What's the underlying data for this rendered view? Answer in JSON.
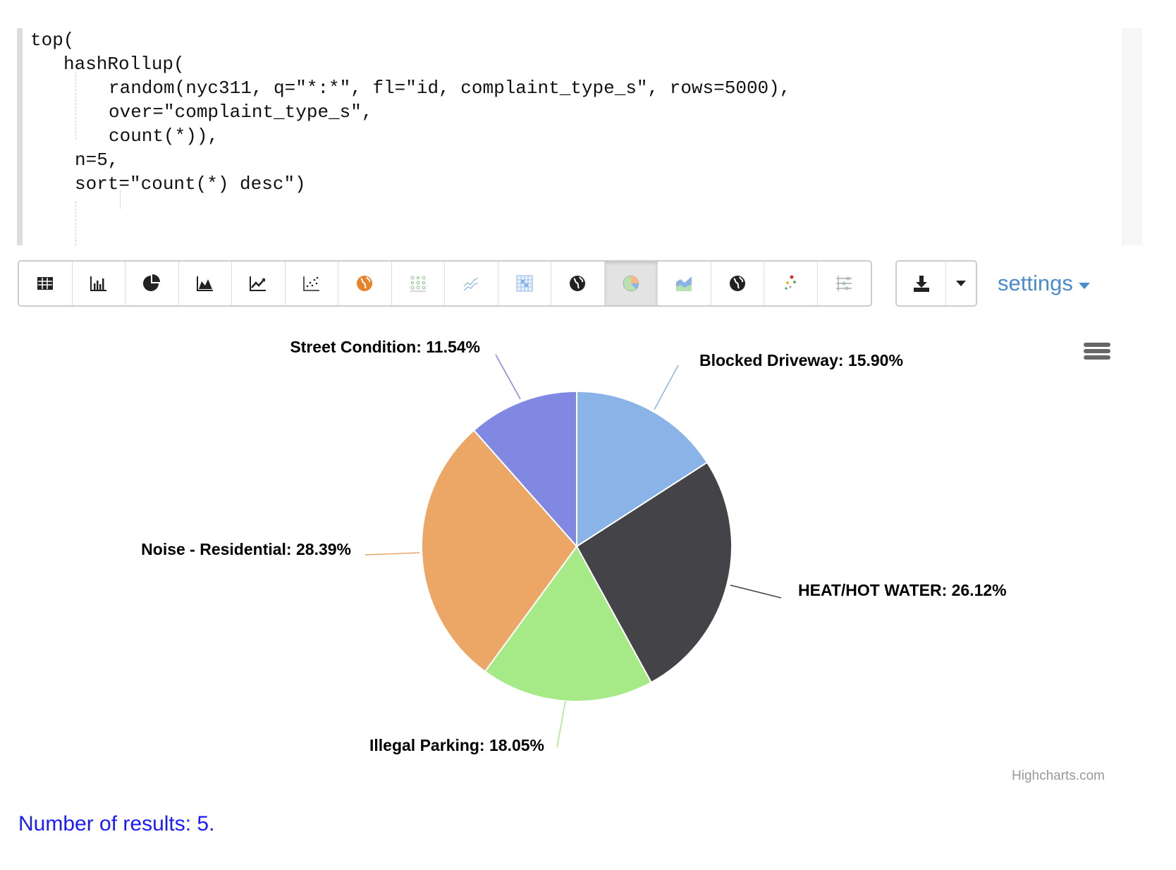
{
  "editor": {
    "lines": [
      "top(",
      "hashRollup(",
      "random(nyc311, q=\"*:*\", fl=\"id, complaint_type_s\", rows=5000),",
      "over=\"complaint_type_s\",",
      "count(*)),",
      "n=5,",
      "sort=\"count(*) desc\")"
    ]
  },
  "toolbar": {
    "buttons": [
      {
        "icon": "table-icon"
      },
      {
        "icon": "bar-chart-icon"
      },
      {
        "icon": "pie-chart-icon"
      },
      {
        "icon": "area-chart-icon"
      },
      {
        "icon": "line-chart-icon"
      },
      {
        "icon": "scatter-chart-icon"
      },
      {
        "icon": "orange-globe-icon"
      },
      {
        "icon": "bubble-grid-icon"
      },
      {
        "icon": "line-points-icon"
      },
      {
        "icon": "heatmap-icon"
      },
      {
        "icon": "world-map-icon"
      },
      {
        "icon": "color-pie-icon",
        "active": true
      },
      {
        "icon": "stacked-area-icon"
      },
      {
        "icon": "globe-icon"
      },
      {
        "icon": "color-scatter-icon"
      },
      {
        "icon": "parallel-coordinates-icon"
      }
    ],
    "download_icon": "download-icon",
    "dropdown_icon": "caret-down-icon",
    "settings_label": "settings"
  },
  "chart_data": {
    "type": "pie",
    "categories": [
      "Blocked Driveway",
      "HEAT/HOT WATER",
      "Illegal Parking",
      "Noise - Residential",
      "Street Condition"
    ],
    "values": [
      15.9,
      26.12,
      18.05,
      28.39,
      11.54
    ],
    "labels": [
      "Blocked Driveway: 15.90%",
      "HEAT/HOT WATER: 26.12%",
      "Illegal Parking: 18.05%",
      "Noise - Residential: 28.39%",
      "Street Condition: 11.54%"
    ],
    "colors": [
      "#8ab4e8",
      "#434348",
      "#a6ea88",
      "#eca767",
      "#8088e2"
    ],
    "legend": "none"
  },
  "chart_menu_icon": "hamburger-menu-icon",
  "credit": "Highcharts.com",
  "results": "Number of results: 5."
}
